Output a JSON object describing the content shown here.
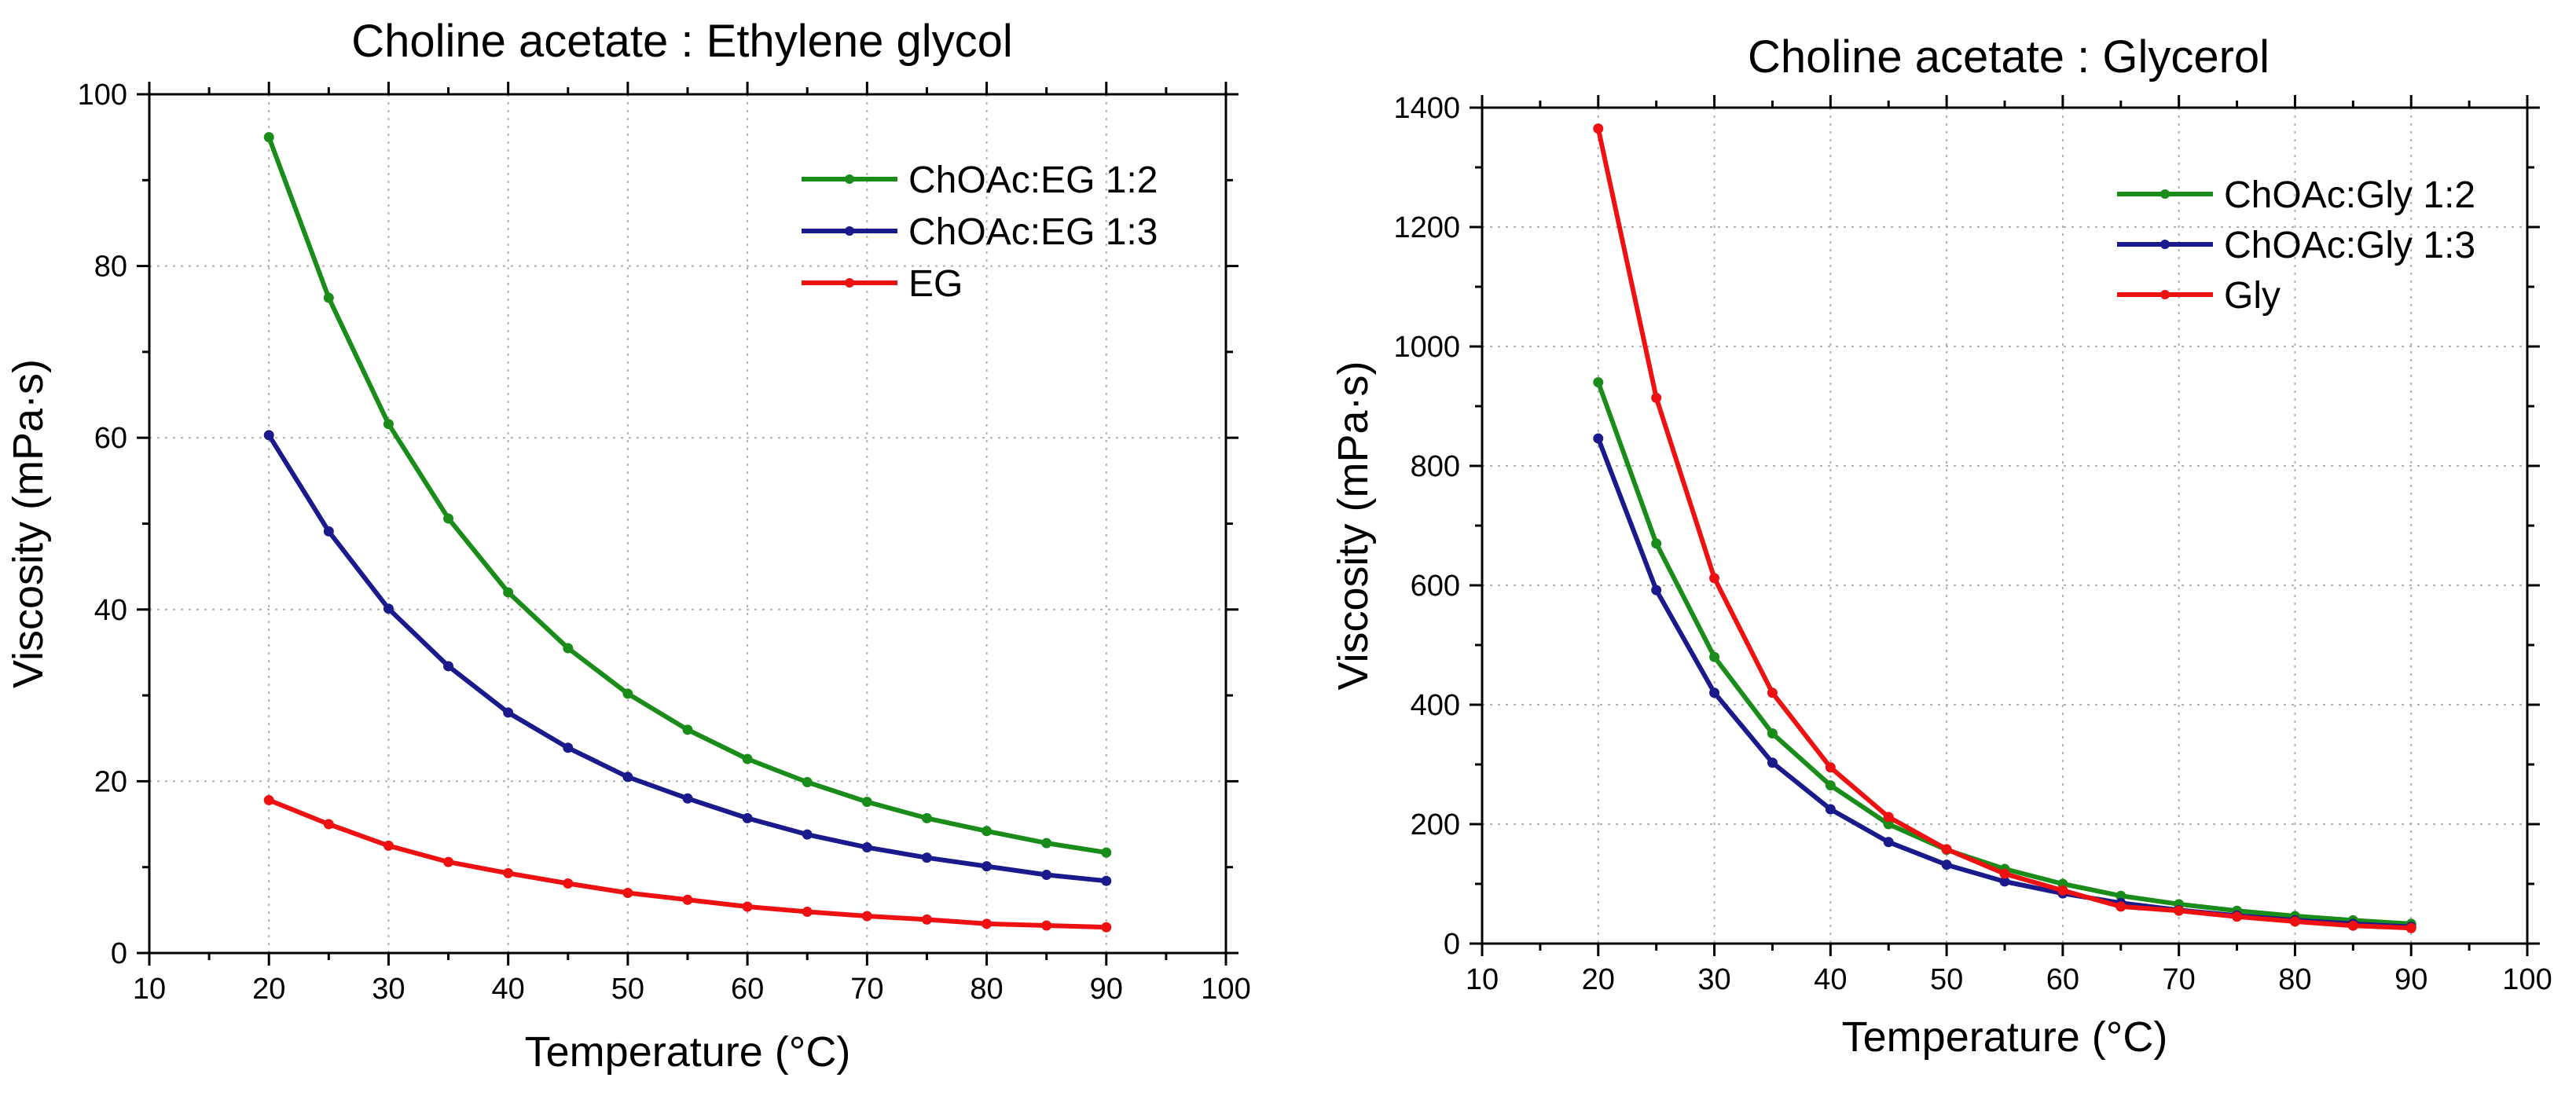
{
  "chart_data": [
    {
      "type": "line",
      "title": "Choline acetate : Ethylene glycol",
      "xlabel": "Temperature (°C)",
      "ylabel": "Viscosity (mPa·s)",
      "xlim": [
        10,
        100
      ],
      "ylim": [
        0,
        100
      ],
      "xticks": [
        10,
        20,
        30,
        40,
        50,
        60,
        70,
        80,
        90,
        100
      ],
      "yticks": [
        0,
        20,
        40,
        60,
        80,
        100
      ],
      "grid": true,
      "legend_position": "top-right",
      "x": [
        20,
        25,
        30,
        35,
        40,
        45,
        50,
        55,
        60,
        65,
        70,
        75,
        80,
        85,
        90
      ],
      "series": [
        {
          "name": "ChOAc:EG 1:2",
          "color": "#1a8c1a",
          "values": [
            95.0,
            76.3,
            61.6,
            50.6,
            42.0,
            35.5,
            30.2,
            26.0,
            22.6,
            19.9,
            17.6,
            15.7,
            14.2,
            12.8,
            11.7
          ]
        },
        {
          "name": "ChOAc:EG 1:3",
          "color": "#1a1a8c",
          "values": [
            60.3,
            49.1,
            40.1,
            33.4,
            28.0,
            23.9,
            20.5,
            18.0,
            15.7,
            13.8,
            12.3,
            11.1,
            10.1,
            9.1,
            8.4
          ]
        },
        {
          "name": "EG",
          "color": "#ee1111",
          "values": [
            17.8,
            15.0,
            12.5,
            10.6,
            9.3,
            8.1,
            7.0,
            6.2,
            5.4,
            4.8,
            4.3,
            3.9,
            3.4,
            3.2,
            3.0
          ]
        }
      ]
    },
    {
      "type": "line",
      "title": "Choline acetate : Glycerol",
      "xlabel": "Temperature (°C)",
      "ylabel": "Viscosity (mPa·s)",
      "xlim": [
        10,
        100
      ],
      "ylim": [
        0,
        1400
      ],
      "xticks": [
        10,
        20,
        30,
        40,
        50,
        60,
        70,
        80,
        90,
        100
      ],
      "yticks": [
        0,
        200,
        400,
        600,
        800,
        1000,
        1200,
        1400
      ],
      "grid": true,
      "legend_position": "top-right",
      "x": [
        20,
        25,
        30,
        35,
        40,
        45,
        50,
        55,
        60,
        65,
        70,
        75,
        80,
        85,
        90
      ],
      "series": [
        {
          "name": "ChOAc:Gly 1:2",
          "color": "#1a8c1a",
          "values": [
            940,
            670,
            480,
            352,
            265,
            200,
            157,
            125,
            100,
            80,
            66,
            55,
            46,
            39,
            33
          ]
        },
        {
          "name": "ChOAc:Gly 1:3",
          "color": "#1a1a8c",
          "values": [
            846,
            592,
            420,
            303,
            225,
            170,
            132,
            104,
            84,
            68,
            56,
            47,
            39,
            33,
            28
          ]
        },
        {
          "name": "Gly",
          "color": "#ee1111",
          "values": [
            1365,
            914,
            612,
            420,
            295,
            212,
            158,
            117,
            89,
            62,
            55,
            45,
            37,
            30,
            26
          ]
        }
      ]
    }
  ]
}
